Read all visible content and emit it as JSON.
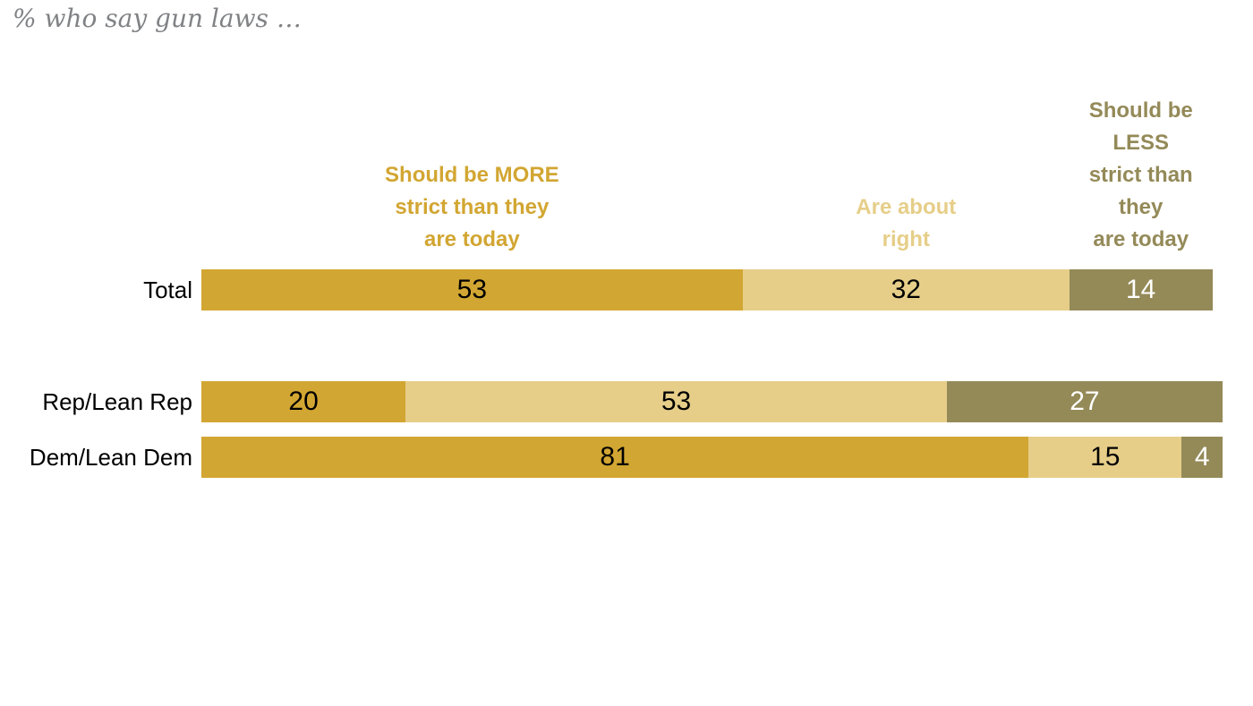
{
  "title": "% who say gun laws …",
  "chart_data": {
    "type": "bar",
    "subtype": "horizontal-stacked",
    "title": "% who say gun laws …",
    "categories": [
      "Total",
      "Rep/Lean Rep",
      "Dem/Lean Dem"
    ],
    "series": [
      {
        "name": "Should be MORE strict than they are today",
        "header_text": "Should be MORE\nstrict than they\nare today",
        "color": "#d2a632",
        "value_label_color": "#000000",
        "values": [
          53,
          20,
          81
        ]
      },
      {
        "name": "Are about right",
        "header_text": "Are about\nright",
        "color": "#e6ce89",
        "value_label_color": "#000000",
        "values": [
          32,
          53,
          15
        ]
      },
      {
        "name": "Should be LESS strict than they are today",
        "header_text": "Should be LESS\nstrict than they\nare today",
        "color": "#948a58",
        "value_label_color": "#ffffff",
        "values": [
          14,
          27,
          4
        ]
      }
    ],
    "xlim": [
      0,
      100
    ],
    "grid": false,
    "axes_visible": false,
    "legend_position": "series-headers-above-bars",
    "title_color": "#808285"
  }
}
